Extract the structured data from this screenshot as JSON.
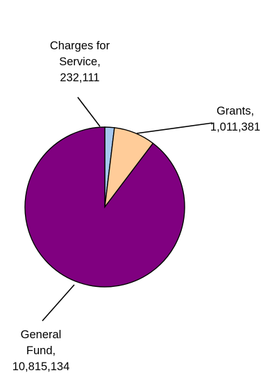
{
  "chart_data": {
    "type": "pie",
    "title": "",
    "series": [
      {
        "name": "",
        "slices": [
          {
            "label_lines": [
              "Charges for",
              "Service,",
              "232,111"
            ],
            "category": "Charges for Service",
            "value": 232111,
            "color": "#a6c8f0"
          },
          {
            "label_lines": [
              "Grants,",
              "1,011,381"
            ],
            "category": "Grants",
            "value": 1011381,
            "color": "#ffcc99"
          },
          {
            "label_lines": [
              "General",
              "Fund,",
              "10,815,134"
            ],
            "category": "General Fund",
            "value": 10815134,
            "color": "#800080"
          }
        ]
      }
    ],
    "start_angle_deg": 0,
    "direction": "clockwise",
    "legend": "none"
  }
}
